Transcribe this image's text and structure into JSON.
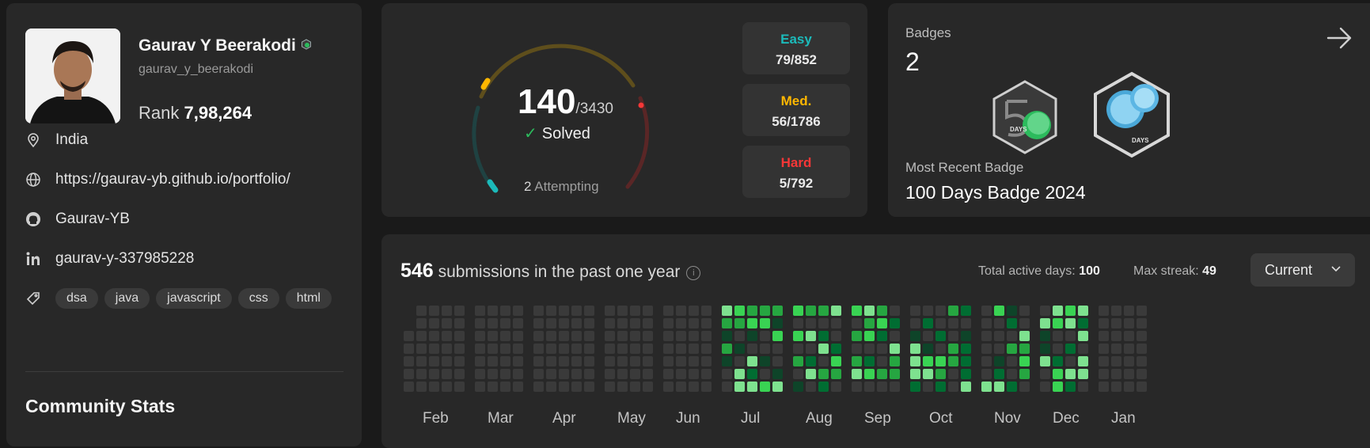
{
  "profile": {
    "name": "Gaurav Y Beerakodi",
    "handle": "gaurav_y_beerakodi",
    "rank_label": "Rank",
    "rank_value": "7,98,264",
    "location": "India",
    "website": "https://gaurav-yb.github.io/portfolio/",
    "github": "Gaurav-YB",
    "linkedin": "gaurav-y-337985228",
    "skills": [
      "dsa",
      "java",
      "javascript",
      "css",
      "html"
    ],
    "community_title": "Community Stats"
  },
  "solved": {
    "count": "140",
    "total": "/3430",
    "label": "Solved",
    "attempting_count": "2",
    "attempting_label": "Attempting",
    "easy_label": "Easy",
    "easy_value": "79/852",
    "medium_label": "Med.",
    "medium_value": "56/1786",
    "hard_label": "Hard",
    "hard_value": "5/792",
    "colors": {
      "easy": "#1cbaba",
      "medium": "#ffb700",
      "hard": "#f63737"
    }
  },
  "badges": {
    "label": "Badges",
    "count": "2",
    "recent_label": "Most Recent Badge",
    "recent_name": "100 Days Badge 2024",
    "badge1_text": "DAYS",
    "badge2_text": "DAYS"
  },
  "calendar": {
    "submissions_count": "546",
    "submissions_text": "submissions in the past one year",
    "active_days_label": "Total active days:",
    "active_days_value": "100",
    "max_streak_label": "Max streak:",
    "max_streak_value": "49",
    "select_value": "Current",
    "months": [
      "Feb",
      "Mar",
      "Apr",
      "May",
      "Jun",
      "Jul",
      "Aug",
      "Sep",
      "Oct",
      "Nov",
      "Dec",
      "Jan"
    ]
  }
}
